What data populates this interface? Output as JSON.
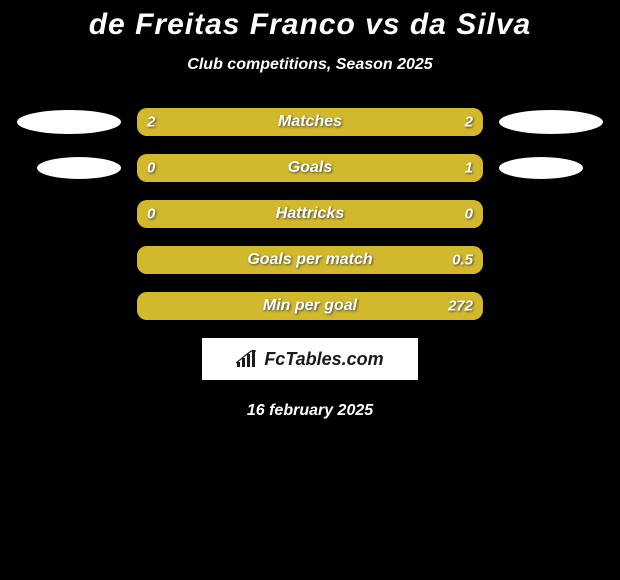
{
  "title": "de Freitas Franco vs da Silva",
  "subtitle": "Club competitions, Season 2025",
  "date": "16 february 2025",
  "logo_text": "FcTables.com",
  "colors": {
    "background": "#000000",
    "bar_bg": "#a48c1f",
    "fill_left": "#d2b82c",
    "fill_right": "#d2b82c",
    "text": "#ffffff",
    "badge": "#ffffff"
  },
  "rows": [
    {
      "label": "Matches",
      "left_value": "2",
      "right_value": "2",
      "left_pct": 50,
      "right_pct": 50,
      "show_badges": true
    },
    {
      "label": "Goals",
      "left_value": "0",
      "right_value": "1",
      "left_pct": 18,
      "right_pct": 82,
      "show_badges": true
    },
    {
      "label": "Hattricks",
      "left_value": "0",
      "right_value": "0",
      "left_pct": 100,
      "right_pct": 0,
      "show_badges": false
    },
    {
      "label": "Goals per match",
      "left_value": "",
      "right_value": "0.5",
      "left_pct": 0,
      "right_pct": 100,
      "show_badges": false
    },
    {
      "label": "Min per goal",
      "left_value": "",
      "right_value": "272",
      "left_pct": 0,
      "right_pct": 100,
      "show_badges": false
    }
  ]
}
